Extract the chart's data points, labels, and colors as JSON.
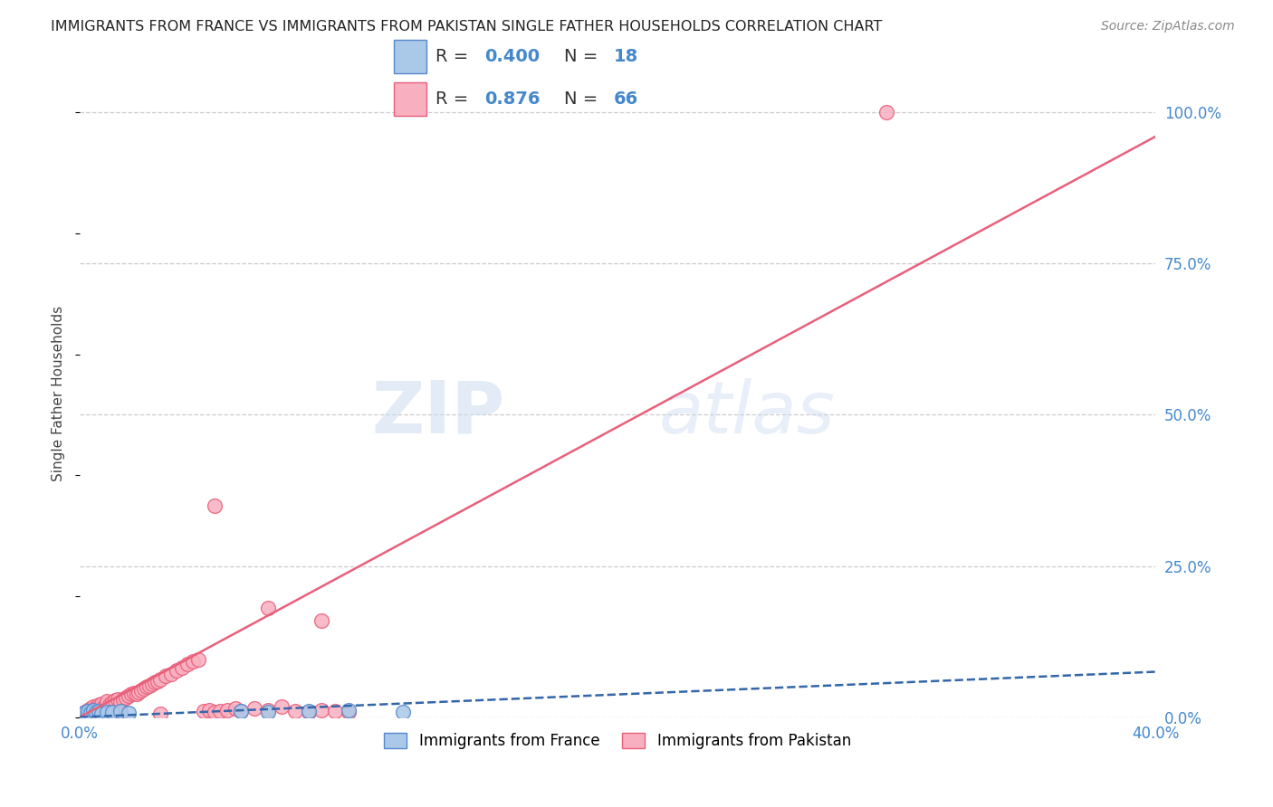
{
  "title": "IMMIGRANTS FROM FRANCE VS IMMIGRANTS FROM PAKISTAN SINGLE FATHER HOUSEHOLDS CORRELATION CHART",
  "source": "Source: ZipAtlas.com",
  "ylabel": "Single Father Households",
  "x_min": 0.0,
  "x_max": 0.4,
  "y_min": 0.0,
  "y_max": 1.07,
  "x_ticks": [
    0.0,
    0.1,
    0.2,
    0.3,
    0.4
  ],
  "x_tick_labels": [
    "0.0%",
    "",
    "",
    "",
    "40.0%"
  ],
  "y_ticks_right": [
    0.0,
    0.25,
    0.5,
    0.75,
    1.0
  ],
  "y_tick_labels_right": [
    "0.0%",
    "25.0%",
    "50.0%",
    "75.0%",
    "100.0%"
  ],
  "france_color": "#aac8e8",
  "france_edge_color": "#5588cc",
  "pakistan_color": "#f8b0c0",
  "pakistan_edge_color": "#e8607a",
  "france_line_color": "#3366aa",
  "pakistan_line_color": "#e8607a",
  "france_R": 0.4,
  "france_N": 18,
  "pakistan_R": 0.876,
  "pakistan_N": 66,
  "watermark_zip": "ZIP",
  "watermark_atlas": "atlas",
  "legend_france_label": "Immigrants from France",
  "legend_pakistan_label": "Immigrants from Pakistan",
  "pak_line_x0": 0.0,
  "pak_line_y0": 0.0,
  "pak_line_x1": 0.4,
  "pak_line_y1": 0.96,
  "fr_line_x0": 0.0,
  "fr_line_y0": 0.0,
  "fr_line_x1": 0.4,
  "fr_line_y1": 0.075
}
